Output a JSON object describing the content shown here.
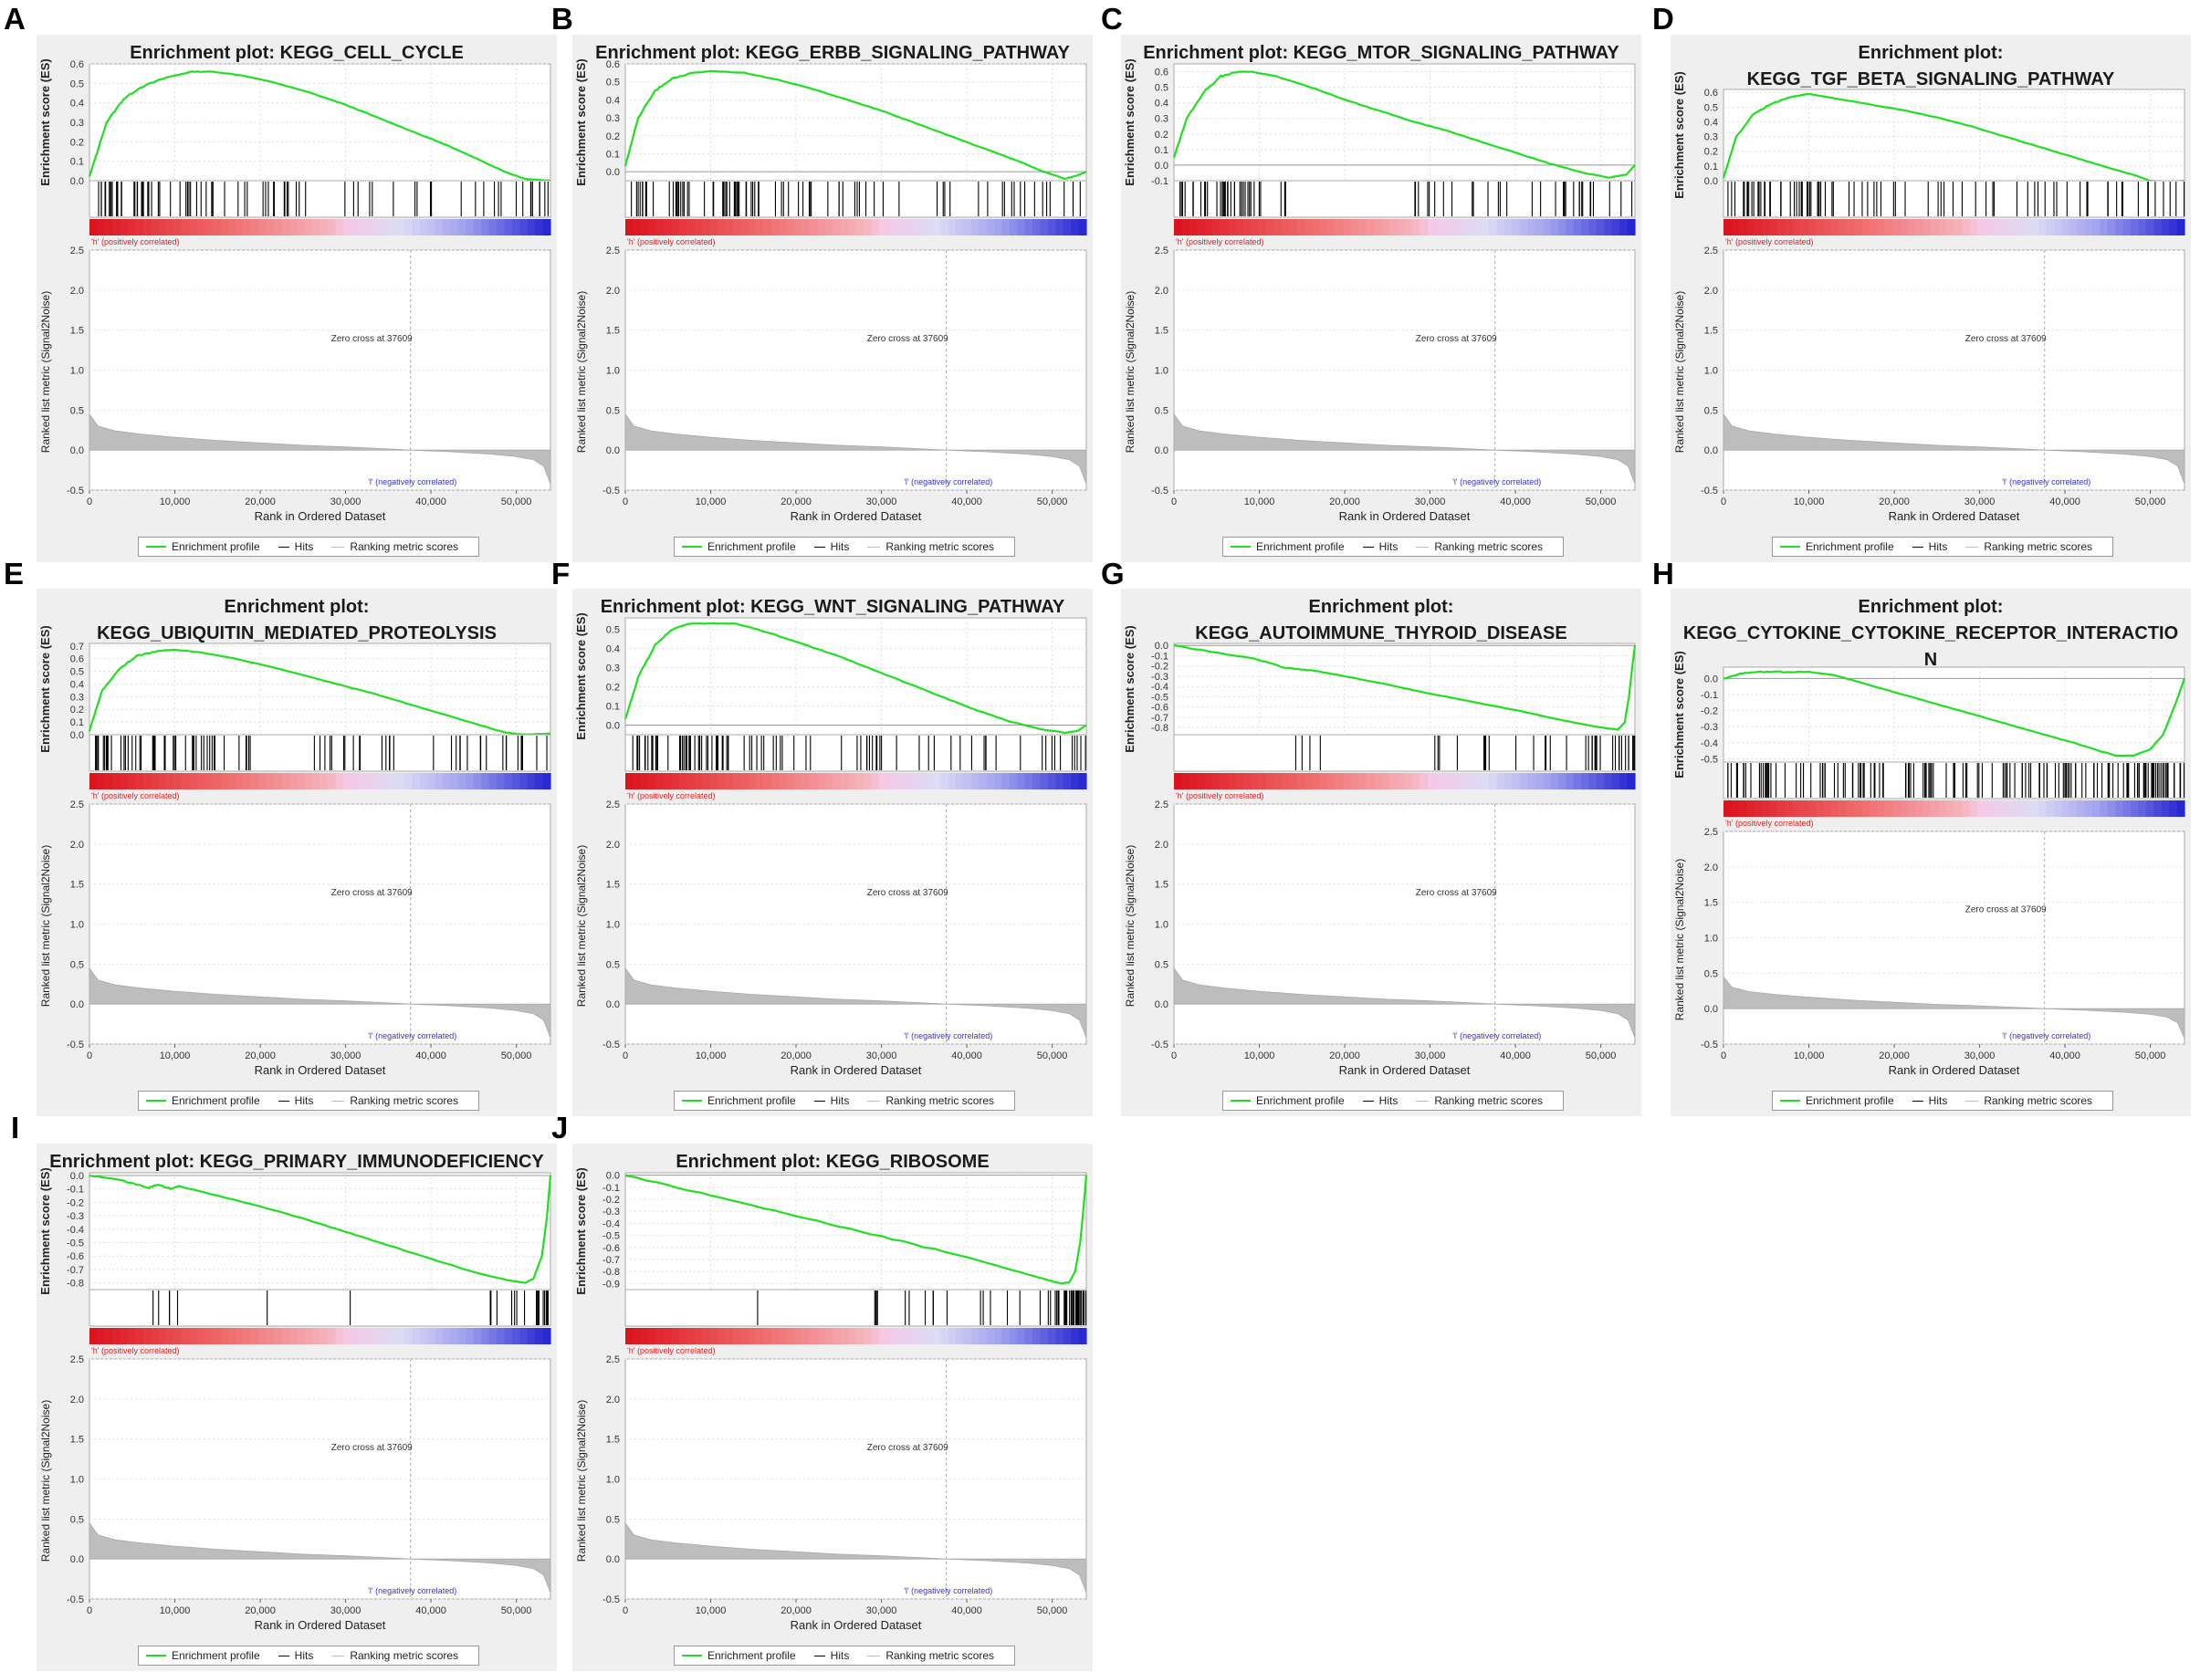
{
  "figure": {
    "common": {
      "es_ylabel": "Enrichment score (ES)",
      "metric_ylabel": "Ranked list metric (Signal2Noise)",
      "xlabel": "Rank in Ordered Dataset",
      "x_ticks": [
        "0",
        "10,000",
        "20,000",
        "30,000",
        "40,000",
        "50,000"
      ],
      "metric_ticks": [
        "2.5",
        "2.0",
        "1.5",
        "1.0",
        "0.5",
        "0.0",
        "-0.5"
      ],
      "zero_cross": "Zero cross at 37609",
      "pos_label": "'h' (positively correlated)",
      "neg_label": "'l' (negatively correlated)",
      "legend_profile": "Enrichment profile",
      "legend_hits": "Hits",
      "legend_metric": "Ranking metric scores",
      "colors": {
        "profile": "#22dd22",
        "hits": "#000000",
        "metric_fill": "#bdbdbd",
        "heat_red": "#e8202a",
        "heat_blue": "#2a2ad8"
      }
    }
  },
  "chart_data": [
    {
      "type": "line",
      "letter": "A",
      "title_lines": [
        "Enrichment plot: KEGG_CELL_CYCLE"
      ],
      "ylim": [
        0,
        0.6
      ],
      "y_ticks": [
        "0.6",
        "0.5",
        "0.4",
        "0.3",
        "0.2",
        "0.1",
        "0.0"
      ],
      "profile_x": [
        0,
        2000,
        4000,
        6000,
        9000,
        12000,
        14500,
        18000,
        22000,
        26000,
        30000,
        34000,
        38000,
        42000,
        46000,
        49000,
        51000,
        54000
      ],
      "profile_y": [
        0.02,
        0.3,
        0.42,
        0.48,
        0.53,
        0.56,
        0.56,
        0.54,
        0.5,
        0.45,
        0.39,
        0.32,
        0.25,
        0.18,
        0.1,
        0.04,
        0.01,
        0.0
      ],
      "hit_zones": [
        [
          500,
          12000,
          36
        ],
        [
          12000,
          19000,
          10
        ],
        [
          20000,
          27000,
          12
        ],
        [
          27000,
          36000,
          6
        ],
        [
          36000,
          45000,
          6
        ],
        [
          45000,
          54000,
          14
        ]
      ]
    },
    {
      "type": "line",
      "letter": "B",
      "title_lines": [
        "Enrichment plot: KEGG_ERBB_SIGNALING_PATHWAY"
      ],
      "ylim": [
        -0.05,
        0.6
      ],
      "y_ticks": [
        "0.6",
        "0.5",
        "0.4",
        "0.3",
        "0.2",
        "0.1",
        "0.0"
      ],
      "profile_x": [
        0,
        1500,
        3500,
        5500,
        8000,
        10000,
        14000,
        18000,
        22000,
        26000,
        30000,
        34000,
        38000,
        42000,
        46000,
        49000,
        51500,
        53000,
        54000
      ],
      "profile_y": [
        0.03,
        0.3,
        0.45,
        0.52,
        0.55,
        0.56,
        0.55,
        0.51,
        0.46,
        0.4,
        0.34,
        0.27,
        0.2,
        0.13,
        0.06,
        0.0,
        -0.04,
        -0.02,
        0.0
      ],
      "hit_zones": [
        [
          500,
          16000,
          42
        ],
        [
          16000,
          27000,
          14
        ],
        [
          27000,
          33000,
          6
        ],
        [
          33000,
          44000,
          6
        ],
        [
          44000,
          54000,
          14
        ]
      ]
    },
    {
      "type": "line",
      "letter": "C",
      "title_lines": [
        "Enrichment plot: KEGG_MTOR_SIGNALING_PATHWAY"
      ],
      "ylim": [
        -0.1,
        0.65
      ],
      "y_ticks": [
        "0.6",
        "0.5",
        "0.4",
        "0.3",
        "0.2",
        "0.1",
        "0.0",
        "-0.1"
      ],
      "profile_x": [
        0,
        1500,
        3500,
        5500,
        7500,
        9000,
        12000,
        16000,
        20000,
        24000,
        28000,
        32000,
        36000,
        40000,
        44000,
        48000,
        51000,
        53000,
        54000
      ],
      "profile_y": [
        0.05,
        0.3,
        0.47,
        0.57,
        0.6,
        0.6,
        0.57,
        0.5,
        0.42,
        0.35,
        0.28,
        0.22,
        0.15,
        0.08,
        0.01,
        -0.05,
        -0.08,
        -0.06,
        0.0
      ],
      "hit_zones": [
        [
          500,
          10000,
          32
        ],
        [
          10000,
          15000,
          4
        ],
        [
          28000,
          33000,
          8
        ],
        [
          33000,
          37000,
          3
        ],
        [
          37000,
          45000,
          6
        ],
        [
          45000,
          54000,
          16
        ]
      ]
    },
    {
      "type": "line",
      "letter": "D",
      "title_lines": [
        "Enrichment plot:",
        "KEGG_TGF_BETA_SIGNALING_PATHWAY"
      ],
      "ylim": [
        0,
        0.62
      ],
      "y_ticks": [
        "0.6",
        "0.5",
        "0.4",
        "0.3",
        "0.2",
        "0.1",
        "0.0"
      ],
      "profile_x": [
        0,
        1500,
        3500,
        5500,
        8000,
        10000,
        13000,
        17000,
        21000,
        25000,
        29000,
        33000,
        37000,
        41000,
        45000,
        48000,
        50000,
        52000,
        54000
      ],
      "profile_y": [
        0.02,
        0.3,
        0.45,
        0.52,
        0.57,
        0.59,
        0.56,
        0.52,
        0.48,
        0.43,
        0.37,
        0.3,
        0.23,
        0.16,
        0.09,
        0.04,
        0.0,
        -0.01,
        0.0
      ],
      "hit_zones": [
        [
          500,
          12000,
          36
        ],
        [
          12000,
          20000,
          10
        ],
        [
          20000,
          28000,
          8
        ],
        [
          28000,
          37000,
          8
        ],
        [
          37000,
          45000,
          8
        ],
        [
          45000,
          54000,
          14
        ]
      ]
    },
    {
      "type": "line",
      "letter": "E",
      "title_lines": [
        "Enrichment plot:",
        "KEGG_UBIQUITIN_MEDIATED_PROTEOLYSIS"
      ],
      "ylim": [
        0,
        0.72
      ],
      "y_ticks": [
        "0.7",
        "0.6",
        "0.5",
        "0.4",
        "0.3",
        "0.2",
        "0.1",
        "0.0"
      ],
      "profile_x": [
        0,
        1500,
        3500,
        5500,
        8000,
        10000,
        13000,
        17000,
        21000,
        25000,
        29000,
        33000,
        37000,
        41000,
        45000,
        48500,
        51000,
        54000
      ],
      "profile_y": [
        0.03,
        0.35,
        0.52,
        0.62,
        0.66,
        0.67,
        0.65,
        0.6,
        0.54,
        0.47,
        0.4,
        0.33,
        0.25,
        0.17,
        0.09,
        0.02,
        0.0,
        0.01
      ],
      "hit_zones": [
        [
          500,
          15000,
          40
        ],
        [
          15000,
          20000,
          6
        ],
        [
          25000,
          33000,
          10
        ],
        [
          33000,
          42000,
          6
        ],
        [
          42000,
          54000,
          18
        ]
      ]
    },
    {
      "type": "line",
      "letter": "F",
      "title_lines": [
        "Enrichment plot: KEGG_WNT_SIGNALING_PATHWAY"
      ],
      "ylim": [
        -0.05,
        0.56
      ],
      "y_ticks": [
        "0.5",
        "0.4",
        "0.3",
        "0.2",
        "0.1",
        "0.0"
      ],
      "profile_x": [
        0,
        1500,
        3500,
        5500,
        7500,
        10000,
        13000,
        17000,
        21000,
        25000,
        29000,
        33000,
        37000,
        41000,
        45000,
        48500,
        51500,
        53000,
        54000
      ],
      "profile_y": [
        0.03,
        0.25,
        0.42,
        0.5,
        0.53,
        0.53,
        0.53,
        0.48,
        0.42,
        0.36,
        0.29,
        0.22,
        0.15,
        0.08,
        0.02,
        -0.02,
        -0.04,
        -0.03,
        0.0
      ],
      "hit_zones": [
        [
          500,
          12000,
          40
        ],
        [
          12000,
          28000,
          18
        ],
        [
          28000,
          40000,
          14
        ],
        [
          40000,
          54000,
          16
        ]
      ]
    },
    {
      "type": "line",
      "letter": "G",
      "title_lines": [
        "Enrichment plot:",
        "KEGG_AUTOIMMUNE_THYROID_DISEASE"
      ],
      "ylim": [
        -0.87,
        0.02
      ],
      "y_ticks": [
        "0.0",
        "-0.1",
        "-0.2",
        "-0.3",
        "-0.4",
        "-0.5",
        "-0.6",
        "-0.7",
        "-0.8"
      ],
      "profile_x": [
        0,
        5000,
        10000,
        13000,
        16000,
        20000,
        25000,
        30000,
        35000,
        40000,
        45000,
        50000,
        52000,
        52800,
        53300,
        53700,
        54000
      ],
      "profile_y": [
        0.0,
        -0.07,
        -0.14,
        -0.22,
        -0.24,
        -0.3,
        -0.38,
        -0.47,
        -0.55,
        -0.63,
        -0.72,
        -0.8,
        -0.82,
        -0.75,
        -0.5,
        -0.2,
        0.0
      ],
      "hit_zones": [
        [
          13000,
          18000,
          4
        ],
        [
          29000,
          37000,
          8
        ],
        [
          40000,
          46000,
          6
        ],
        [
          46000,
          52000,
          10
        ],
        [
          52000,
          54000,
          10
        ]
      ]
    },
    {
      "type": "line",
      "letter": "H",
      "title_lines": [
        "Enrichment plot:",
        "KEGG_CYTOKINE_CYTOKINE_RECEPTOR_INTERACTIO",
        "N"
      ],
      "ylim": [
        -0.52,
        0.07
      ],
      "y_ticks": [
        "0.0",
        "-0.1",
        "-0.2",
        "-0.3",
        "-0.4",
        "-0.5"
      ],
      "profile_x": [
        0,
        2000,
        4000,
        7000,
        10000,
        13000,
        17000,
        21000,
        25000,
        29000,
        33000,
        37000,
        41000,
        44000,
        46000,
        48000,
        50000,
        51500,
        53000,
        54000
      ],
      "profile_y": [
        0.0,
        0.03,
        0.04,
        0.04,
        0.04,
        0.02,
        -0.04,
        -0.1,
        -0.16,
        -0.22,
        -0.28,
        -0.34,
        -0.4,
        -0.45,
        -0.48,
        -0.48,
        -0.44,
        -0.35,
        -0.15,
        0.0
      ],
      "hit_zones": [
        [
          0,
          10000,
          24
        ],
        [
          10000,
          20000,
          24
        ],
        [
          20000,
          30000,
          24
        ],
        [
          30000,
          40000,
          22
        ],
        [
          40000,
          48000,
          24
        ],
        [
          48000,
          54000,
          30
        ]
      ]
    },
    {
      "type": "line",
      "letter": "I",
      "title_lines": [
        "Enrichment plot: KEGG_PRIMARY_IMMUNODEFICIENCY"
      ],
      "ylim": [
        -0.85,
        0.02
      ],
      "y_ticks": [
        "0.0",
        "-0.1",
        "-0.2",
        "-0.3",
        "-0.4",
        "-0.5",
        "-0.6",
        "-0.7",
        "-0.8"
      ],
      "profile_x": [
        0,
        4000,
        7000,
        8000,
        9500,
        10500,
        15000,
        20000,
        25000,
        30000,
        35000,
        40000,
        45000,
        49000,
        51000,
        52000,
        53000,
        53600,
        54000
      ],
      "profile_y": [
        0.0,
        -0.04,
        -0.09,
        -0.07,
        -0.1,
        -0.08,
        -0.15,
        -0.23,
        -0.32,
        -0.42,
        -0.52,
        -0.62,
        -0.72,
        -0.78,
        -0.8,
        -0.77,
        -0.6,
        -0.3,
        0.0
      ],
      "hit_zones": [
        [
          7000,
          11000,
          5
        ],
        [
          20000,
          21000,
          1
        ],
        [
          30000,
          31000,
          1
        ],
        [
          45000,
          50000,
          5
        ],
        [
          50000,
          52500,
          4
        ],
        [
          52500,
          54000,
          8
        ]
      ]
    },
    {
      "type": "line",
      "letter": "J",
      "title_lines": [
        "Enrichment plot: KEGG_RIBOSOME"
      ],
      "ylim": [
        -0.95,
        0.02
      ],
      "y_ticks": [
        "0.0",
        "-0.1",
        "-0.2",
        "-0.3",
        "-0.4",
        "-0.5",
        "-0.6",
        "-0.7",
        "-0.8",
        "-0.9"
      ],
      "profile_x": [
        0,
        10000,
        20000,
        30000,
        40000,
        47000,
        50000,
        51000,
        52000,
        52700,
        53300,
        53700,
        54000
      ],
      "profile_y": [
        0.0,
        -0.17,
        -0.34,
        -0.51,
        -0.68,
        -0.82,
        -0.88,
        -0.9,
        -0.89,
        -0.8,
        -0.55,
        -0.25,
        0.0
      ],
      "hit_zones": [
        [
          15000,
          16000,
          1
        ],
        [
          29000,
          34000,
          6
        ],
        [
          34000,
          40000,
          4
        ],
        [
          40000,
          50000,
          8
        ],
        [
          50000,
          52000,
          10
        ],
        [
          52000,
          54000,
          24
        ]
      ]
    }
  ]
}
